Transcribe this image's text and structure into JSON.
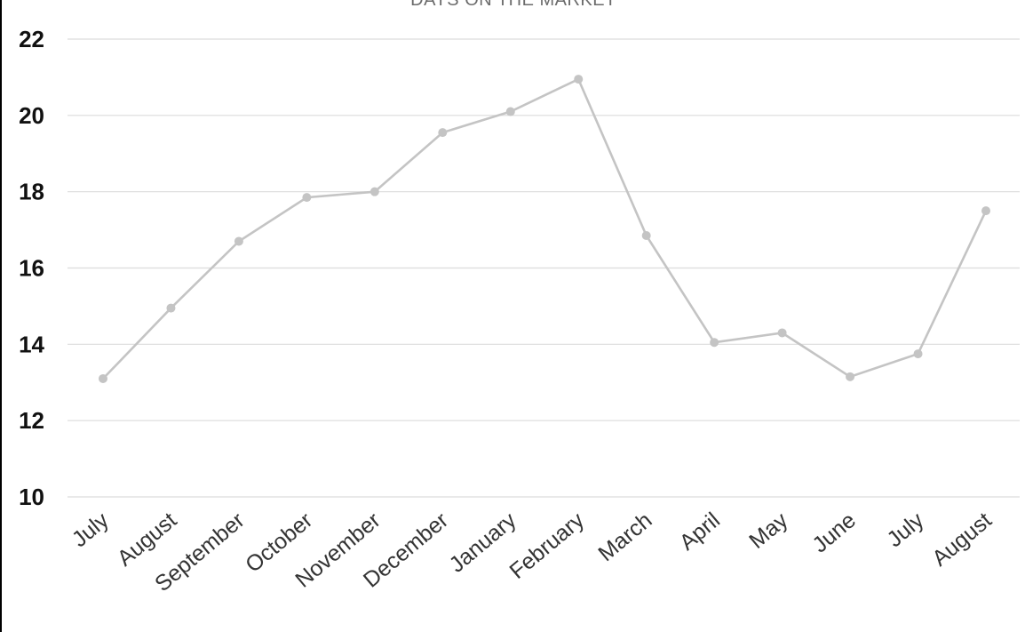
{
  "chart_data": {
    "type": "line",
    "title": "DAYS ON THE MARKET",
    "xlabel": "",
    "ylabel": "",
    "categories": [
      "July",
      "August",
      "September",
      "October",
      "November",
      "December",
      "January",
      "February",
      "March",
      "April",
      "May",
      "June",
      "July",
      "August"
    ],
    "series": [
      {
        "values": [
          13.1,
          14.95,
          16.7,
          17.85,
          18.0,
          19.55,
          20.1,
          20.95,
          16.85,
          14.05,
          14.3,
          13.15,
          13.75,
          17.5
        ]
      }
    ],
    "ylim": [
      10,
      22
    ],
    "yticks": [
      10,
      12,
      14,
      16,
      18,
      20,
      22
    ],
    "grid": true,
    "legend": "none",
    "colors": {
      "line": "#c4c4c4",
      "grid": "#dcdcdc",
      "axis_text": "#111111",
      "title_text": "#6b6b6b"
    }
  }
}
